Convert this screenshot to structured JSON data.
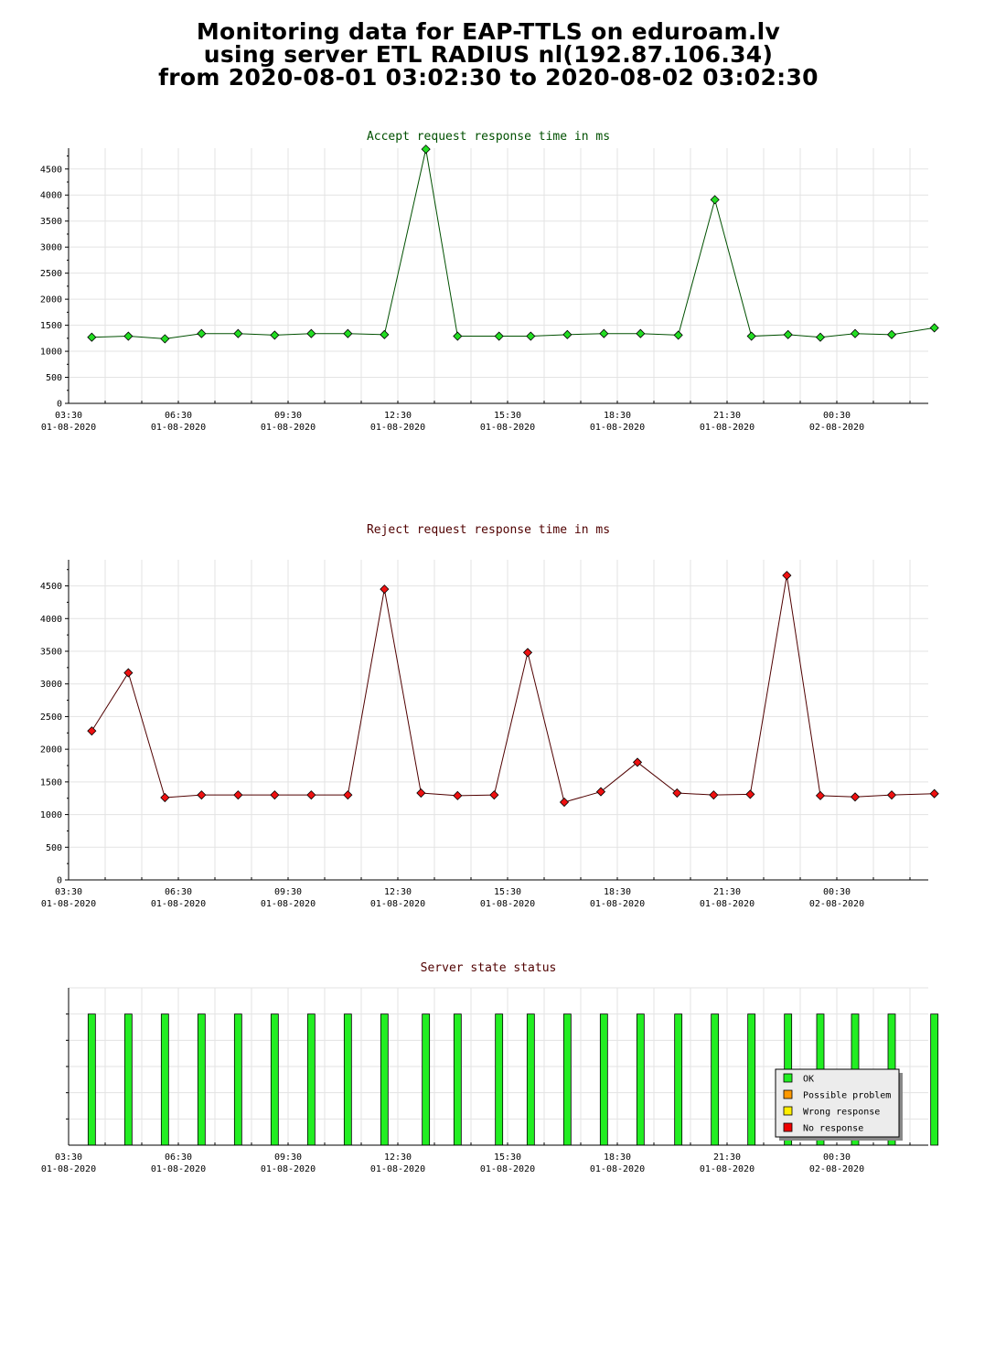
{
  "header": {
    "line1": "Monitoring data for EAP-TTLS on eduroam.lv",
    "line2": "using server ETL RADIUS nl(192.87.106.34)",
    "line3": "from 2020-08-01 03:02:30 to 2020-08-02 03:02:30"
  },
  "colors": {
    "accept_line": "#005000",
    "accept_marker": "#22dd22",
    "reject_line": "#500000",
    "reject_marker": "#ee1111",
    "ok": "#22ee22",
    "possible_problem": "#ff9900",
    "wrong_response": "#ffee00",
    "no_response": "#ee0000"
  },
  "chart_data": [
    {
      "type": "line",
      "title": "Accept request response time in ms",
      "title_color": "#005000",
      "xlabel": "",
      "ylabel": "",
      "ylim": [
        0,
        4900
      ],
      "yticks": [
        0,
        500,
        1000,
        1500,
        2000,
        2500,
        3000,
        3500,
        4000,
        4500
      ],
      "grid": true,
      "xtick_labels": [
        [
          "03:30",
          "01-08-2020"
        ],
        [
          "06:30",
          "01-08-2020"
        ],
        [
          "09:30",
          "01-08-2020"
        ],
        [
          "12:30",
          "01-08-2020"
        ],
        [
          "15:30",
          "01-08-2020"
        ],
        [
          "18:30",
          "01-08-2020"
        ],
        [
          "21:30",
          "01-08-2020"
        ],
        [
          "00:30",
          "02-08-2020"
        ]
      ],
      "x": [
        "03:50",
        "04:50",
        "05:50",
        "06:50",
        "07:50",
        "08:50",
        "09:50",
        "10:50",
        "11:50",
        "12:58",
        "13:50",
        "14:58",
        "15:50",
        "16:50",
        "17:50",
        "18:50",
        "19:52",
        "20:52",
        "21:52",
        "22:52",
        "23:45",
        "00:42",
        "01:42",
        "02:52"
      ],
      "values": [
        1270,
        1290,
        1240,
        1340,
        1340,
        1310,
        1340,
        1340,
        1320,
        4880,
        1290,
        1290,
        1290,
        1320,
        1340,
        1340,
        1310,
        3910,
        1290,
        1320,
        1270,
        1340,
        1320,
        1450
      ]
    },
    {
      "type": "line",
      "title": "Reject request response time in ms",
      "title_color": "#500000",
      "xlabel": "",
      "ylabel": "",
      "ylim": [
        0,
        4900
      ],
      "yticks": [
        0,
        500,
        1000,
        1500,
        2000,
        2500,
        3000,
        3500,
        4000,
        4500
      ],
      "grid": true,
      "xtick_labels": [
        [
          "03:30",
          "01-08-2020"
        ],
        [
          "06:30",
          "01-08-2020"
        ],
        [
          "09:30",
          "01-08-2020"
        ],
        [
          "12:30",
          "01-08-2020"
        ],
        [
          "15:30",
          "01-08-2020"
        ],
        [
          "18:30",
          "01-08-2020"
        ],
        [
          "21:30",
          "01-08-2020"
        ],
        [
          "00:30",
          "02-08-2020"
        ]
      ],
      "x": [
        "03:50",
        "04:50",
        "05:50",
        "06:50",
        "07:50",
        "08:50",
        "09:50",
        "10:50",
        "11:50",
        "12:50",
        "13:50",
        "14:50",
        "15:45",
        "16:45",
        "17:45",
        "18:45",
        "19:50",
        "20:50",
        "21:50",
        "22:50",
        "23:45",
        "00:42",
        "01:42",
        "02:52"
      ],
      "values": [
        2280,
        3170,
        1260,
        1300,
        1300,
        1300,
        1300,
        1300,
        4450,
        1330,
        1290,
        1300,
        3480,
        1190,
        1350,
        1800,
        1330,
        1300,
        1310,
        4660,
        1290,
        1270,
        1300,
        1320
      ]
    },
    {
      "type": "bar",
      "title": "Server state status",
      "title_color": "#500000",
      "xlabel": "",
      "ylabel": "",
      "grid": true,
      "xtick_labels": [
        [
          "03:30",
          "01-08-2020"
        ],
        [
          "06:30",
          "01-08-2020"
        ],
        [
          "09:30",
          "01-08-2020"
        ],
        [
          "12:30",
          "01-08-2020"
        ],
        [
          "15:30",
          "01-08-2020"
        ],
        [
          "18:30",
          "01-08-2020"
        ],
        [
          "21:30",
          "01-08-2020"
        ],
        [
          "00:30",
          "02-08-2020"
        ]
      ],
      "x": [
        "03:50",
        "04:50",
        "05:50",
        "06:50",
        "07:50",
        "08:50",
        "09:50",
        "10:50",
        "11:50",
        "12:58",
        "13:50",
        "14:58",
        "15:50",
        "16:50",
        "17:50",
        "18:50",
        "19:52",
        "20:52",
        "21:52",
        "22:52",
        "23:45",
        "00:42",
        "01:42",
        "02:52"
      ],
      "status": [
        "OK",
        "OK",
        "OK",
        "OK",
        "OK",
        "OK",
        "OK",
        "OK",
        "OK",
        "OK",
        "OK",
        "OK",
        "OK",
        "OK",
        "OK",
        "OK",
        "OK",
        "OK",
        "OK",
        "OK",
        "OK",
        "OK",
        "OK",
        "OK"
      ],
      "legend_position": "bottom-right",
      "legend": [
        {
          "label": "OK",
          "status": "OK"
        },
        {
          "label": "Possible problem",
          "status": "possible_problem"
        },
        {
          "label": "Wrong response",
          "status": "wrong_response"
        },
        {
          "label": "No response",
          "status": "no_response"
        }
      ]
    }
  ]
}
